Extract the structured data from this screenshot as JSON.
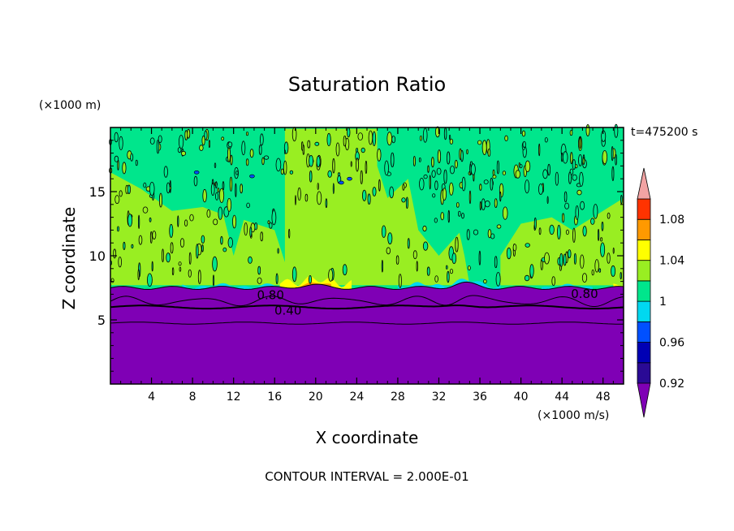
{
  "chart_data": {
    "type": "heatmap",
    "title": "Saturation Ratio",
    "xlabel": "X coordinate",
    "ylabel": "Z coordinate",
    "x_unit": "(×1000 m/s)",
    "y_unit": "(×1000 m)",
    "time_label": "t=475200 s",
    "footer": "CONTOUR INTERVAL = 2.000E-01",
    "xlim": [
      0,
      50
    ],
    "ylim": [
      0,
      20
    ],
    "x_ticks": [
      4,
      8,
      12,
      16,
      20,
      24,
      28,
      32,
      36,
      40,
      44,
      48
    ],
    "y_ticks": [
      5,
      10,
      15
    ],
    "contour_labels": [
      {
        "text": "0.80",
        "x": 15.6,
        "z": 7.0
      },
      {
        "text": "0.40",
        "x": 17.3,
        "z": 5.8
      },
      {
        "text": "0.80",
        "x": 46.2,
        "z": 7.1
      }
    ],
    "regions": {
      "upper_saturation": 1.0,
      "lower_saturation": 0.9,
      "interface_height": 7.5
    },
    "colorbar": {
      "tick_labels": [
        "1.08",
        "1.04",
        "1",
        "0.96",
        "0.92"
      ],
      "colors": [
        "#2a0a95",
        "#0000b4",
        "#0050ff",
        "#00d8f0",
        "#00e68c",
        "#99ee22",
        "#ffff00",
        "#ff9900",
        "#ff3300",
        "#f2a3a3",
        "#7f00b5"
      ]
    }
  }
}
